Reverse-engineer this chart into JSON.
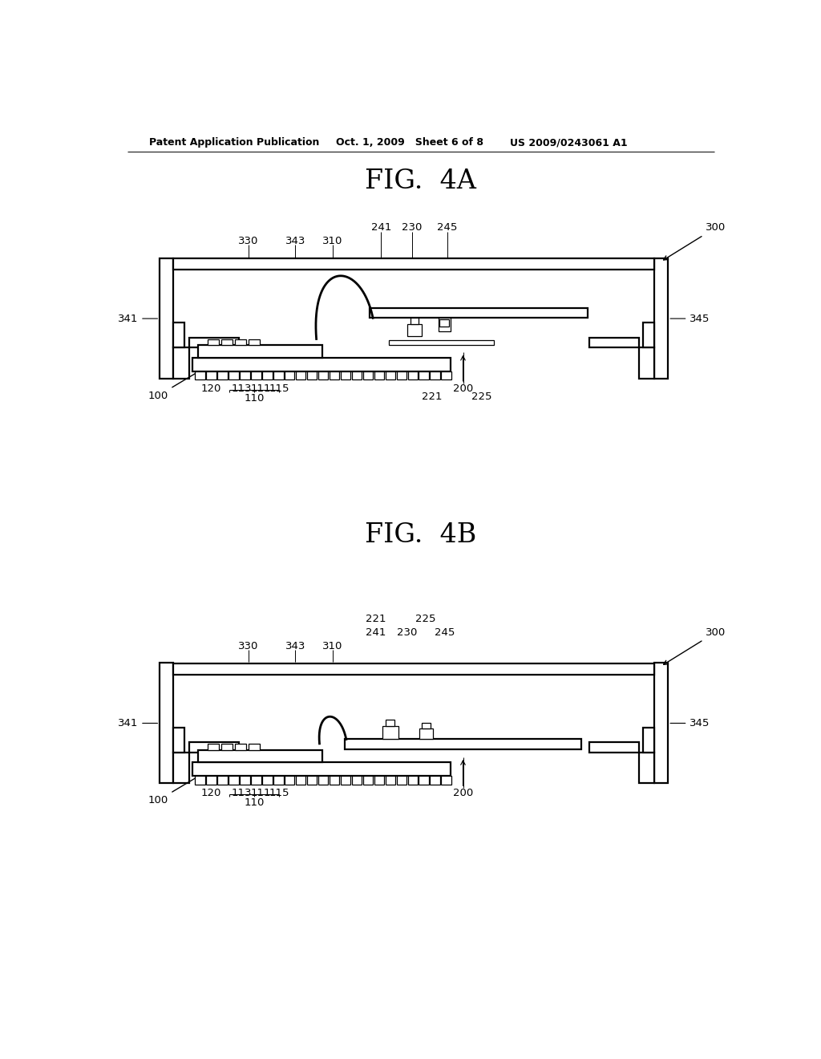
{
  "bg_color": "#ffffff",
  "line_color": "#000000",
  "header_left": "Patent Application Publication",
  "header_mid": "Oct. 1, 2009   Sheet 6 of 8",
  "header_right": "US 2009/0243061 A1",
  "fig4a_title": "FIG.  4A",
  "fig4b_title": "FIG.  4B",
  "font_size_header": 9,
  "font_size_title": 24,
  "font_size_label": 9.5,
  "lw_main": 1.6,
  "lw_thin": 0.9,
  "lw_hatch": 0.4
}
